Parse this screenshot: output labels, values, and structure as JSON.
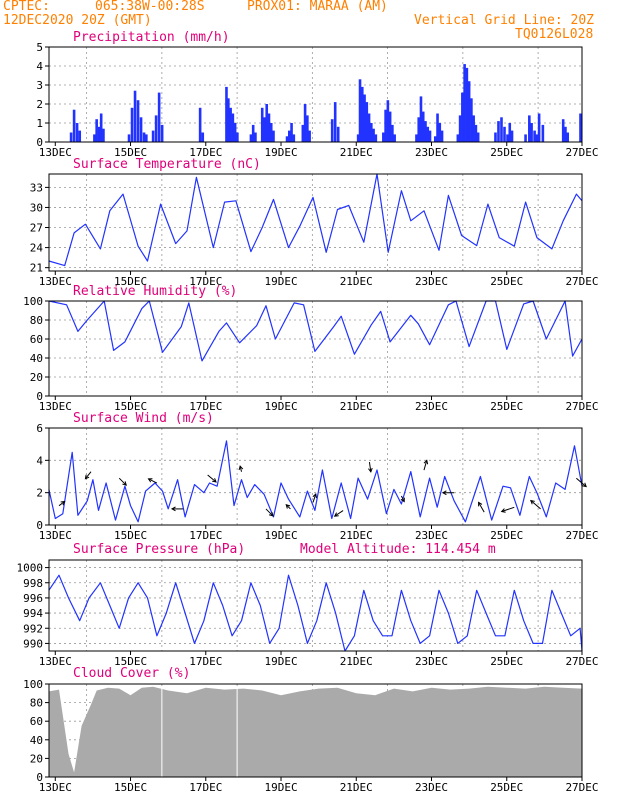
{
  "header": {
    "source": "CPTEC:",
    "coords": "065:38W-00:28S",
    "location": "PROX01: MARAA (AM)",
    "datetime": "12DEC2020 20Z (GMT)",
    "grid_note": "Vertical Grid Line: 20Z",
    "code": "TQ0126L028"
  },
  "colors": {
    "header_text": "#ff8000",
    "panel_title": "#e0007a",
    "series": "#2233ff",
    "cloud_fill": "#aaaaaa",
    "grid": "#999999"
  },
  "x_axis": {
    "tick_labels": [
      "13DEC",
      "15DEC",
      "17DEC",
      "19DEC",
      "21DEC",
      "23DEC",
      "25DEC",
      "27DEC"
    ],
    "range_days": [
      12.833,
      27.0
    ]
  },
  "chart_data": [
    {
      "id": "precip",
      "type": "bar",
      "title": "Precipitation (mm/h)",
      "ylim": [
        0,
        5
      ],
      "yticks": [
        0,
        1,
        2,
        3,
        4,
        5
      ],
      "grid": true,
      "x": [
        13.42,
        13.5,
        13.58,
        13.65,
        14.04,
        14.1,
        14.17,
        14.22,
        14.28,
        14.96,
        15.04,
        15.12,
        15.2,
        15.28,
        15.36,
        15.42,
        15.6,
        15.68,
        15.76,
        15.84,
        16.85,
        16.92,
        17.55,
        17.6,
        17.66,
        17.72,
        17.78,
        17.84,
        18.2,
        18.26,
        18.32,
        18.5,
        18.56,
        18.62,
        18.68,
        18.74,
        18.8,
        19.16,
        19.22,
        19.28,
        19.34,
        19.58,
        19.64,
        19.7,
        19.76,
        20.36,
        20.44,
        20.52,
        21.05,
        21.1,
        21.16,
        21.22,
        21.28,
        21.34,
        21.4,
        21.46,
        21.52,
        21.72,
        21.78,
        21.84,
        21.9,
        21.96,
        22.02,
        22.6,
        22.66,
        22.72,
        22.78,
        22.84,
        22.9,
        22.96,
        23.1,
        23.16,
        23.22,
        23.28,
        23.7,
        23.76,
        23.82,
        23.88,
        23.94,
        24.0,
        24.06,
        24.12,
        24.18,
        24.24,
        24.7,
        24.78,
        24.86,
        24.94,
        25.02,
        25.08,
        25.14,
        25.5,
        25.6,
        25.66,
        25.74,
        25.8,
        25.86,
        25.96,
        26.5,
        26.56,
        26.62,
        26.96
      ],
      "values": [
        0.5,
        1.7,
        1.0,
        0.6,
        0.4,
        1.2,
        0.8,
        1.5,
        0.7,
        0.4,
        1.8,
        2.7,
        2.2,
        1.3,
        0.5,
        0.4,
        0.6,
        1.4,
        2.6,
        0.9,
        1.8,
        0.5,
        2.9,
        2.3,
        1.8,
        1.5,
        1.0,
        0.5,
        0.4,
        0.9,
        0.5,
        1.8,
        1.3,
        2.0,
        1.5,
        1.0,
        0.6,
        0.3,
        0.6,
        1.0,
        0.4,
        0.9,
        2.0,
        1.4,
        0.6,
        1.2,
        2.1,
        0.8,
        0.4,
        3.3,
        2.9,
        2.5,
        2.1,
        1.5,
        1.0,
        0.7,
        0.4,
        0.5,
        1.7,
        2.2,
        1.6,
        0.9,
        0.4,
        0.4,
        1.3,
        2.4,
        1.6,
        1.1,
        0.8,
        0.6,
        0.3,
        1.5,
        1.0,
        0.6,
        0.4,
        1.4,
        2.6,
        4.1,
        3.9,
        3.2,
        2.3,
        1.4,
        0.9,
        0.5,
        0.5,
        1.1,
        1.3,
        0.8,
        0.4,
        1.0,
        0.6,
        0.4,
        1.4,
        1.0,
        0.6,
        0.4,
        1.5,
        0.9,
        1.2,
        0.8,
        0.5,
        1.5
      ]
    },
    {
      "id": "temp",
      "type": "line",
      "title": "Surface Temperature (nC)",
      "ylim": [
        20.5,
        35
      ],
      "yticks": [
        21,
        24,
        27,
        30,
        33
      ],
      "grid": true,
      "x": [
        12.83,
        13.25,
        13.5,
        13.8,
        14.2,
        14.45,
        14.8,
        15.2,
        15.45,
        15.8,
        16.2,
        16.5,
        16.75,
        17.2,
        17.5,
        17.8,
        18.2,
        18.5,
        18.8,
        19.2,
        19.5,
        19.85,
        20.2,
        20.5,
        20.8,
        21.2,
        21.55,
        21.85,
        22.2,
        22.45,
        22.8,
        23.2,
        23.45,
        23.8,
        24.2,
        24.5,
        24.8,
        25.2,
        25.5,
        25.8,
        26.2,
        26.5,
        26.85,
        27.0
      ],
      "values": [
        22.0,
        21.3,
        26.2,
        27.5,
        23.8,
        29.5,
        32.0,
        24.2,
        22.0,
        30.5,
        24.6,
        26.5,
        34.5,
        24.0,
        30.8,
        31.0,
        23.4,
        27.0,
        31.2,
        24.0,
        27.2,
        31.5,
        23.3,
        29.7,
        30.3,
        24.8,
        35.0,
        23.3,
        32.5,
        28.0,
        29.5,
        23.6,
        31.8,
        25.8,
        24.3,
        30.5,
        25.5,
        24.2,
        30.8,
        25.5,
        23.8,
        28.0,
        32.0,
        31.0
      ]
    },
    {
      "id": "rh",
      "type": "line",
      "title": "Relative Humidity (%)",
      "ylim": [
        0,
        100
      ],
      "yticks": [
        0,
        20,
        40,
        60,
        80,
        100
      ],
      "grid": true,
      "x": [
        12.83,
        13.3,
        13.6,
        13.85,
        14.3,
        14.55,
        14.85,
        15.3,
        15.5,
        15.85,
        16.35,
        16.55,
        16.9,
        17.35,
        17.55,
        17.9,
        18.35,
        18.6,
        18.85,
        19.35,
        19.6,
        19.9,
        20.4,
        20.6,
        20.95,
        21.4,
        21.65,
        21.9,
        22.45,
        22.65,
        22.95,
        23.45,
        23.65,
        24.0,
        24.45,
        24.7,
        25.0,
        25.45,
        25.7,
        26.05,
        26.55,
        26.75,
        27.0
      ],
      "values": [
        100,
        96,
        68,
        80,
        100,
        48,
        57,
        92,
        100,
        46,
        73,
        98,
        37,
        68,
        77,
        56,
        74,
        95,
        60,
        98,
        96,
        47,
        73,
        84,
        44,
        75,
        89,
        57,
        85,
        76,
        54,
        96,
        100,
        52,
        100,
        100,
        49,
        97,
        100,
        60,
        100,
        42,
        60
      ]
    },
    {
      "id": "wind",
      "type": "line",
      "title": "Surface Wind (m/s)",
      "ylim": [
        0,
        6
      ],
      "yticks": [
        0,
        2,
        4,
        6
      ],
      "grid": true,
      "x": [
        12.83,
        13.0,
        13.2,
        13.45,
        13.6,
        13.85,
        14.0,
        14.15,
        14.35,
        14.6,
        14.85,
        15.0,
        15.2,
        15.4,
        15.65,
        15.85,
        16.0,
        16.25,
        16.45,
        16.7,
        16.95,
        17.1,
        17.3,
        17.55,
        17.75,
        17.95,
        18.1,
        18.3,
        18.55,
        18.8,
        19.0,
        19.2,
        19.5,
        19.7,
        19.9,
        20.1,
        20.35,
        20.6,
        20.85,
        21.05,
        21.3,
        21.55,
        21.8,
        22.0,
        22.2,
        22.45,
        22.7,
        22.95,
        23.15,
        23.35,
        23.6,
        23.9,
        24.1,
        24.3,
        24.6,
        24.9,
        25.1,
        25.35,
        25.6,
        25.8,
        26.05,
        26.3,
        26.55,
        26.8,
        27.0
      ],
      "values": [
        2.2,
        0.4,
        0.7,
        4.5,
        0.6,
        1.5,
        2.8,
        0.9,
        2.6,
        0.3,
        2.4,
        1.2,
        0.2,
        2.1,
        2.6,
        2.1,
        1.0,
        2.8,
        0.5,
        2.5,
        2.0,
        2.6,
        2.4,
        5.2,
        1.2,
        2.8,
        1.7,
        2.5,
        1.9,
        0.5,
        2.6,
        1.6,
        0.5,
        2.1,
        0.9,
        3.4,
        0.4,
        2.6,
        0.4,
        2.9,
        1.6,
        3.4,
        0.7,
        2.2,
        1.3,
        3.3,
        0.5,
        2.9,
        1.1,
        3.0,
        1.5,
        0.2,
        1.6,
        3.0,
        0.3,
        2.4,
        2.3,
        0.6,
        3.0,
        2.0,
        0.5,
        2.6,
        2.2,
        4.9,
        2.4
      ],
      "arrows": {
        "x": [
          13.1,
          13.95,
          14.7,
          15.7,
          16.4,
          17.05,
          17.95,
          18.6,
          19.25,
          19.85,
          20.65,
          21.35,
          22.2,
          22.8,
          23.6,
          24.4,
          25.2,
          25.9,
          26.85
        ],
        "u": [
          0.4,
          -0.4,
          0.5,
          -0.6,
          -0.8,
          0.6,
          -0.1,
          0.5,
          -0.3,
          0.2,
          -0.6,
          0.1,
          0.2,
          0.2,
          -0.8,
          -0.4,
          -0.9,
          -0.7,
          0.7
        ],
        "v": [
          0.3,
          -0.5,
          -0.5,
          0.3,
          0.0,
          -0.5,
          0.4,
          -0.5,
          0.3,
          0.6,
          -0.4,
          -0.7,
          -0.4,
          0.7,
          0.0,
          0.7,
          -0.3,
          0.6,
          -0.6
        ]
      }
    },
    {
      "id": "pressure",
      "type": "line",
      "title": "Surface Pressure (hPa)",
      "annotation": "Model Altitude: 114.454 m",
      "ylim": [
        989,
        1001
      ],
      "yticks": [
        990,
        992,
        994,
        996,
        998,
        1000
      ],
      "grid": true,
      "x": [
        12.83,
        13.1,
        13.35,
        13.65,
        13.9,
        14.2,
        14.45,
        14.7,
        14.95,
        15.2,
        15.45,
        15.7,
        15.95,
        16.2,
        16.45,
        16.7,
        16.95,
        17.2,
        17.45,
        17.7,
        17.95,
        18.2,
        18.45,
        18.7,
        18.95,
        19.2,
        19.45,
        19.7,
        19.95,
        20.2,
        20.45,
        20.7,
        20.95,
        21.2,
        21.45,
        21.7,
        21.95,
        22.2,
        22.45,
        22.7,
        22.95,
        23.2,
        23.45,
        23.7,
        23.95,
        24.2,
        24.45,
        24.7,
        24.95,
        25.2,
        25.45,
        25.7,
        25.95,
        26.2,
        26.45,
        26.7,
        26.95,
        27.0
      ],
      "values": [
        997,
        999,
        996,
        993,
        996,
        998,
        995,
        992,
        996,
        998,
        996,
        991,
        994,
        998,
        994,
        990,
        993,
        998,
        995,
        991,
        993,
        998,
        995,
        990,
        992,
        999,
        995,
        990,
        993,
        998,
        994,
        989,
        991,
        997,
        993,
        991,
        991,
        997,
        993,
        990,
        991,
        997,
        994,
        990,
        991,
        997,
        994,
        991,
        991,
        997,
        993,
        990,
        990,
        997,
        994,
        991,
        992,
        989
      ]
    },
    {
      "id": "cloud",
      "type": "area",
      "title": "Cloud Cover (%)",
      "ylim": [
        0,
        100
      ],
      "yticks": [
        0,
        20,
        40,
        60,
        80,
        100
      ],
      "grid": true,
      "x": [
        12.83,
        13.1,
        13.35,
        13.5,
        13.7,
        13.95,
        14.1,
        14.4,
        14.7,
        15.0,
        15.3,
        15.6,
        16.0,
        16.5,
        17.0,
        17.5,
        18.0,
        18.5,
        19.0,
        19.5,
        20.0,
        20.5,
        21.0,
        21.5,
        22.0,
        22.5,
        23.0,
        23.5,
        24.0,
        24.5,
        25.0,
        25.5,
        26.0,
        26.5,
        27.0
      ],
      "values": [
        92,
        94,
        25,
        5,
        55,
        78,
        93,
        96,
        95,
        88,
        96,
        97,
        93,
        90,
        96,
        94,
        95,
        93,
        88,
        92,
        95,
        96,
        90,
        88,
        95,
        92,
        96,
        94,
        95,
        97,
        96,
        95,
        97,
        96,
        95
      ]
    }
  ]
}
